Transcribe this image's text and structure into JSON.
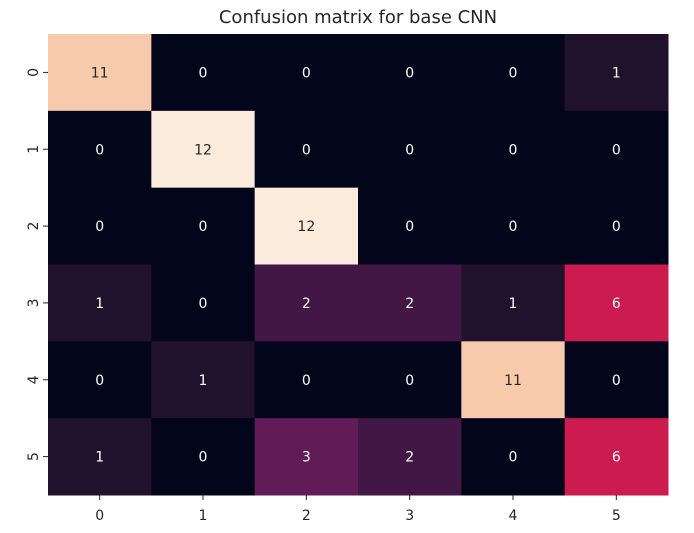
{
  "chart_data": {
    "type": "heatmap",
    "title": "Confusion matrix for base CNN",
    "xlabel": "",
    "ylabel": "",
    "x_tick_labels": [
      "0",
      "1",
      "2",
      "3",
      "4",
      "5"
    ],
    "y_tick_labels": [
      "0",
      "1",
      "2",
      "3",
      "4",
      "5"
    ],
    "values": [
      [
        11,
        0,
        0,
        0,
        0,
        1
      ],
      [
        0,
        12,
        0,
        0,
        0,
        0
      ],
      [
        0,
        0,
        12,
        0,
        0,
        0
      ],
      [
        1,
        0,
        2,
        2,
        1,
        6
      ],
      [
        0,
        1,
        0,
        0,
        11,
        0
      ],
      [
        1,
        0,
        3,
        2,
        0,
        6
      ]
    ],
    "value_range": [
      0,
      12
    ],
    "colormap": "rocket",
    "colorbar": false,
    "annotated": true
  },
  "colors": {
    "text_dark": "#262626",
    "annot_light": "#ffffff",
    "annot_dark": "#262626"
  }
}
